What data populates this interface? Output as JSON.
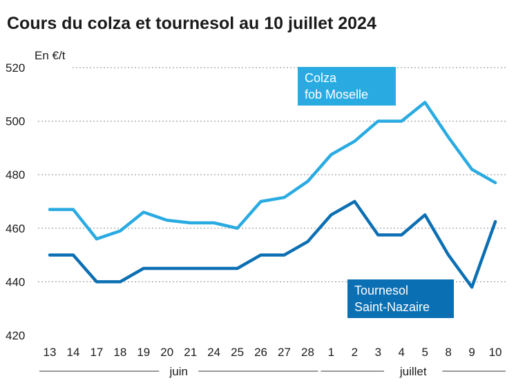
{
  "chart_data": {
    "type": "line",
    "title": "Cours du colza et tournesol au 10 juillet 2024",
    "ylabel": "En €/t",
    "ylim": [
      420,
      520
    ],
    "yticks": [
      420,
      440,
      460,
      480,
      500,
      520
    ],
    "grid": "horizontal dotted",
    "categories": [
      "13",
      "14",
      "17",
      "18",
      "19",
      "20",
      "21",
      "24",
      "25",
      "26",
      "27",
      "28",
      "1",
      "2",
      "3",
      "4",
      "5",
      "8",
      "9",
      "10"
    ],
    "months": [
      {
        "label": "juin",
        "from": 0,
        "to": 11
      },
      {
        "label": "juillet",
        "from": 12,
        "to": 19
      }
    ],
    "series": [
      {
        "name_lines": [
          "Colza",
          "fob Moselle"
        ],
        "color": "#29abe2",
        "values": [
          467,
          467,
          456,
          459,
          466,
          463,
          462,
          462,
          460,
          470,
          471.5,
          477.5,
          487.5,
          492.5,
          500,
          500,
          507,
          494,
          482,
          477
        ]
      },
      {
        "name_lines": [
          "Tournesol",
          "Saint-Nazaire"
        ],
        "color": "#0b6fb3",
        "values": [
          450,
          450,
          440,
          440,
          445,
          445,
          445,
          445,
          445,
          450,
          450,
          455,
          465,
          470,
          457.5,
          457.5,
          465,
          450,
          438,
          462.5
        ]
      }
    ]
  }
}
